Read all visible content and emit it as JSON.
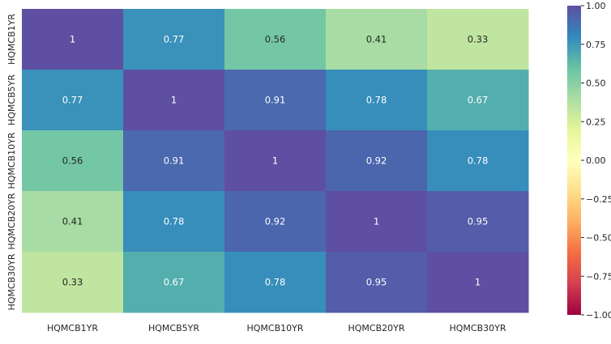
{
  "chart_data": {
    "type": "heatmap",
    "title": "",
    "xlabel": "",
    "ylabel": "",
    "x_categories": [
      "HQMCB1YR",
      "HQMCB5YR",
      "HQMCB10YR",
      "HQMCB20YR",
      "HQMCB30YR"
    ],
    "y_categories": [
      "HQMCB1YR",
      "HQMCB5YR",
      "HQMCB10YR",
      "HQMCB20YR",
      "HQMCB30YR"
    ],
    "values": [
      [
        1,
        0.77,
        0.56,
        0.41,
        0.33
      ],
      [
        0.77,
        1,
        0.91,
        0.78,
        0.67
      ],
      [
        0.56,
        0.91,
        1,
        0.92,
        0.78
      ],
      [
        0.41,
        0.78,
        0.92,
        1,
        0.95
      ],
      [
        0.33,
        0.67,
        0.78,
        0.95,
        1
      ]
    ],
    "cell_labels": [
      [
        "1",
        "0.77",
        "0.56",
        "0.41",
        "0.33"
      ],
      [
        "0.77",
        "1",
        "0.91",
        "0.78",
        "0.67"
      ],
      [
        "0.56",
        "0.91",
        "1",
        "0.92",
        "0.78"
      ],
      [
        "0.41",
        "0.78",
        "0.92",
        "1",
        "0.95"
      ],
      [
        "0.33",
        "0.67",
        "0.78",
        "0.95",
        "1"
      ]
    ],
    "colormap": "Spectral",
    "vmin": -1,
    "vmax": 1,
    "colorbar_ticks": [
      1,
      0.75,
      0.5,
      0.25,
      0,
      -0.25,
      -0.5,
      -0.75,
      -1
    ],
    "colorbar_tick_labels": [
      "1.00",
      "0.75",
      "0.50",
      "0.25",
      "0.00",
      "−0.25",
      "−0.50",
      "−0.75",
      "−1.00"
    ],
    "colorbar_stops": [
      "#9e0142",
      "#d53e4f",
      "#f46d43",
      "#fdae61",
      "#fee08b",
      "#ffffbf",
      "#e6f598",
      "#abdda4",
      "#66c2a5",
      "#3288bd",
      "#5e4fa2"
    ]
  }
}
